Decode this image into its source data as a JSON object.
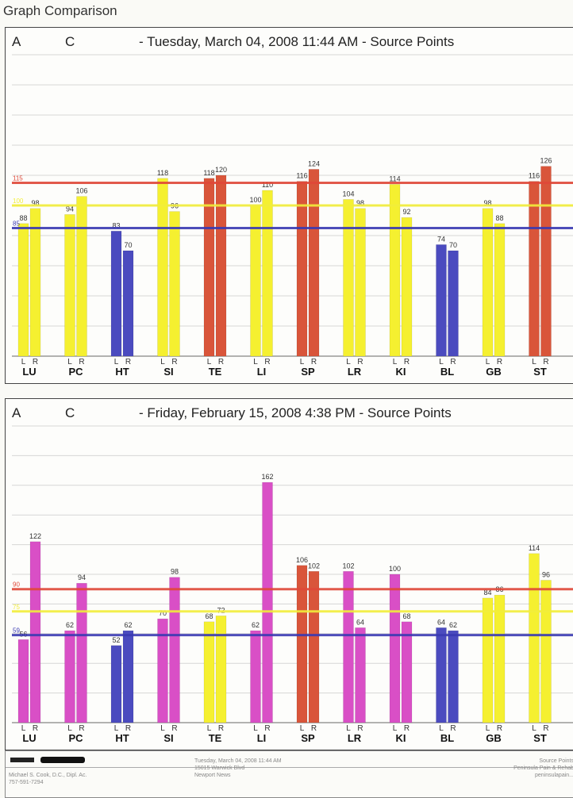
{
  "page": {
    "title": "Graph Comparison"
  },
  "footer": {
    "left_line1": "Michael S. Cook, D.C., Dipl. Ac.",
    "left_line2": "757-591-7294",
    "mid_line1": "Tuesday, March 04, 2008 11:44 AM",
    "mid_line2": "15015 Warwick Blvd",
    "mid_line3": "Newport News",
    "right_line1": "Source Points",
    "right_line2": "Peninsula Pain & Rehab",
    "right_line3": "peninsulapain..."
  },
  "colors": {
    "red": "#d9553a",
    "yellow": "#f5f030",
    "blue": "#4b4bbf",
    "magenta": "#d94fc6",
    "red_line": "#e04838",
    "yellow_line": "#f2ee3a",
    "blue_line": "#3a3ab2"
  },
  "chart_data": [
    {
      "type": "bar",
      "header": {
        "a": "A",
        "c": "C",
        "date": "- Tuesday, March 04, 2008 11:44 AM - Source Points"
      },
      "categories": [
        "LU",
        "PC",
        "HT",
        "SI",
        "TE",
        "LI",
        "SP",
        "LR",
        "KI",
        "BL",
        "GB",
        "ST"
      ],
      "sub_labels": [
        "L",
        "R"
      ],
      "ylim": [
        0,
        200
      ],
      "grid": true,
      "reference_lines": [
        {
          "label": "115",
          "value": 115,
          "color": "red"
        },
        {
          "label": "100",
          "value": 100,
          "color": "yellow"
        },
        {
          "label": "85",
          "value": 85,
          "color": "blue"
        }
      ],
      "bars": [
        {
          "category": "LU",
          "left": 88,
          "right": 98,
          "left_color": "yellow",
          "right_color": "yellow"
        },
        {
          "category": "PC",
          "left": 94,
          "right": 106,
          "left_color": "yellow",
          "right_color": "yellow"
        },
        {
          "category": "HT",
          "left": 83,
          "right": 70,
          "left_color": "blue",
          "right_color": "blue"
        },
        {
          "category": "SI",
          "left": 118,
          "right": 96,
          "left_color": "yellow",
          "right_color": "yellow"
        },
        {
          "category": "TE",
          "left": 118,
          "right": 120,
          "left_color": "red",
          "right_color": "red"
        },
        {
          "category": "LI",
          "left": 100,
          "right": 110,
          "left_color": "yellow",
          "right_color": "yellow"
        },
        {
          "category": "SP",
          "left": 116,
          "right": 124,
          "left_color": "red",
          "right_color": "red"
        },
        {
          "category": "LR",
          "left": 104,
          "right": 98,
          "left_color": "yellow",
          "right_color": "yellow"
        },
        {
          "category": "KI",
          "left": 114,
          "right": 92,
          "left_color": "yellow",
          "right_color": "yellow"
        },
        {
          "category": "BL",
          "left": 74,
          "right": 70,
          "left_color": "blue",
          "right_color": "blue"
        },
        {
          "category": "GB",
          "left": 98,
          "right": 88,
          "left_color": "yellow",
          "right_color": "yellow"
        },
        {
          "category": "ST",
          "left": 116,
          "right": 126,
          "left_color": "red",
          "right_color": "red"
        }
      ]
    },
    {
      "type": "bar",
      "header": {
        "a": "A",
        "c": "C",
        "date": "- Friday, February 15, 2008 4:38 PM - Source Points"
      },
      "categories": [
        "LU",
        "PC",
        "HT",
        "SI",
        "TE",
        "LI",
        "SP",
        "LR",
        "KI",
        "BL",
        "GB",
        "ST"
      ],
      "sub_labels": [
        "L",
        "R"
      ],
      "ylim": [
        0,
        200
      ],
      "grid": true,
      "reference_lines": [
        {
          "label": "90",
          "value": 90,
          "color": "red"
        },
        {
          "label": "75",
          "value": 75,
          "color": "yellow"
        },
        {
          "label": "59",
          "value": 59,
          "color": "blue"
        }
      ],
      "bars": [
        {
          "category": "LU",
          "left": 56,
          "right": 122,
          "left_color": "magenta",
          "right_color": "magenta"
        },
        {
          "category": "PC",
          "left": 62,
          "right": 94,
          "left_color": "magenta",
          "right_color": "magenta"
        },
        {
          "category": "HT",
          "left": 52,
          "right": 62,
          "left_color": "blue",
          "right_color": "blue"
        },
        {
          "category": "SI",
          "left": 70,
          "right": 98,
          "left_color": "magenta",
          "right_color": "magenta"
        },
        {
          "category": "TE",
          "left": 68,
          "right": 72,
          "left_color": "yellow",
          "right_color": "yellow"
        },
        {
          "category": "LI",
          "left": 62,
          "right": 162,
          "left_color": "magenta",
          "right_color": "magenta"
        },
        {
          "category": "SP",
          "left": 106,
          "right": 102,
          "left_color": "red",
          "right_color": "red"
        },
        {
          "category": "LR",
          "left": 102,
          "right": 64,
          "left_color": "magenta",
          "right_color": "magenta"
        },
        {
          "category": "KI",
          "left": 100,
          "right": 68,
          "left_color": "magenta",
          "right_color": "magenta"
        },
        {
          "category": "BL",
          "left": 64,
          "right": 62,
          "left_color": "blue",
          "right_color": "blue"
        },
        {
          "category": "GB",
          "left": 84,
          "right": 86,
          "left_color": "yellow",
          "right_color": "yellow"
        },
        {
          "category": "ST",
          "left": 114,
          "right": 96,
          "left_color": "yellow",
          "right_color": "yellow"
        }
      ]
    }
  ]
}
